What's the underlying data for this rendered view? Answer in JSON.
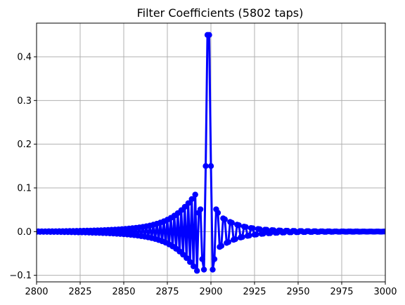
{
  "chart_data": {
    "type": "line",
    "title": "Filter Coefficients (5802 taps)",
    "xlabel": "",
    "ylabel": "",
    "xlim": [
      2800,
      3000
    ],
    "ylim": [
      -0.115,
      0.477
    ],
    "xticks": [
      2800,
      2825,
      2850,
      2875,
      2900,
      2925,
      2950,
      2975,
      3000
    ],
    "xtick_labels": [
      "2800",
      "2825",
      "2850",
      "2875",
      "2900",
      "2925",
      "2950",
      "2975",
      "3000"
    ],
    "yticks": [
      -0.1,
      0.0,
      0.1,
      0.2,
      0.3,
      0.4
    ],
    "ytick_labels": [
      "−0.1",
      "0.0",
      "0.1",
      "0.2",
      "0.3",
      "0.4"
    ],
    "grid": true,
    "marker": "circle",
    "color": "#0000ff",
    "series": [
      {
        "x": [
          2800,
          2801,
          2802,
          2803,
          2804,
          2805,
          2806,
          2807,
          2808,
          2809,
          2810,
          2811,
          2812,
          2813,
          2814,
          2815,
          2816,
          2817,
          2818,
          2819,
          2820,
          2821,
          2822,
          2823,
          2824,
          2825,
          2826,
          2827,
          2828,
          2829,
          2830,
          2831,
          2832,
          2833,
          2834,
          2835,
          2836,
          2837,
          2838,
          2839,
          2840,
          2841,
          2842,
          2843,
          2844,
          2845,
          2846,
          2847,
          2848,
          2849,
          2850,
          2851,
          2852,
          2853,
          2854,
          2855,
          2856,
          2857,
          2858,
          2859,
          2860,
          2861,
          2862,
          2863,
          2864,
          2865,
          2866,
          2867,
          2868,
          2869,
          2870,
          2871,
          2872,
          2873,
          2874,
          2875,
          2876,
          2877,
          2878,
          2879,
          2880,
          2881,
          2882,
          2883,
          2884,
          2885,
          2886,
          2887,
          2888,
          2889,
          2890,
          2891,
          2892,
          2893,
          2894,
          2895,
          2896,
          2897,
          2898,
          2899,
          2900,
          2901,
          2902,
          2903,
          2904,
          2905,
          2906,
          2907,
          2908,
          2909,
          2910,
          2911,
          2912,
          2913,
          2914,
          2915,
          2916,
          2917,
          2918,
          2919,
          2920,
          2921,
          2922,
          2923,
          2924,
          2925,
          2926,
          2927,
          2928,
          2929,
          2930,
          2931,
          2932,
          2933,
          2934,
          2935,
          2936,
          2937,
          2938,
          2939,
          2940,
          2941,
          2942,
          2943,
          2944,
          2945,
          2946,
          2947,
          2948,
          2949,
          2950,
          2951,
          2952,
          2953,
          2954,
          2955,
          2956,
          2957,
          2958,
          2959,
          2960,
          2961,
          2962,
          2963,
          2964,
          2965,
          2966,
          2967,
          2968,
          2969,
          2970,
          2971,
          2972,
          2973,
          2974,
          2975,
          2976,
          2977,
          2978,
          2979,
          2980,
          2981,
          2982,
          2983,
          2984,
          2985,
          2986,
          2987,
          2988,
          2989,
          2990,
          2991,
          2992,
          2993,
          2994,
          2995,
          2996,
          2997,
          2998,
          2999,
          3000
        ],
        "y": [
          -0.0005,
          0.0005,
          -0.0005,
          0.0006,
          -0.0006,
          0.0006,
          -0.0006,
          0.0007,
          -0.0007,
          0.0007,
          -0.0008,
          0.0008,
          -0.0008,
          0.0009,
          -0.0009,
          0.001,
          -0.0011,
          0.0011,
          -0.0012,
          0.0013,
          -0.0013,
          0.0014,
          -0.0015,
          0.0016,
          -0.0017,
          0.0017,
          -0.0018,
          0.0019,
          -0.002,
          0.0021,
          -0.0022,
          0.0023,
          -0.0025,
          0.0026,
          -0.0027,
          0.0028,
          -0.003,
          0.0031,
          -0.0033,
          0.0034,
          -0.0036,
          0.0038,
          -0.004,
          0.0042,
          -0.0044,
          0.0046,
          -0.0049,
          0.0051,
          -0.0054,
          0.0057,
          -0.006,
          0.0063,
          -0.0066,
          0.007,
          -0.0074,
          0.0078,
          -0.0082,
          0.0087,
          -0.0092,
          0.0097,
          -0.0103,
          0.0109,
          -0.0116,
          0.0123,
          -0.0131,
          0.0139,
          -0.0148,
          0.0158,
          -0.0168,
          0.018,
          -0.0192,
          0.0206,
          -0.022,
          0.0236,
          -0.0253,
          0.0272,
          -0.0292,
          0.0314,
          -0.0338,
          0.0364,
          -0.0392,
          0.0422,
          -0.0454,
          0.0489,
          -0.0526,
          0.0565,
          -0.0606,
          0.065,
          -0.0696,
          0.0744,
          -0.0794,
          0.0846,
          -0.0897,
          0.043,
          0.051,
          -0.063,
          -0.087,
          0.15,
          0.45,
          0.45,
          0.15,
          -0.087,
          -0.063,
          0.051,
          0.043,
          -0.0351,
          -0.0327,
          0.0303,
          0.028,
          -0.0259,
          -0.0239,
          0.022,
          0.0203,
          -0.0187,
          -0.0172,
          0.0159,
          0.0146,
          -0.0135,
          -0.0124,
          0.0114,
          0.0105,
          -0.0097,
          -0.0089,
          0.0082,
          0.0076,
          -0.007,
          -0.0065,
          0.006,
          0.0055,
          -0.0051,
          -0.0047,
          0.0044,
          0.0041,
          -0.0038,
          -0.0035,
          0.0033,
          0.003,
          -0.0028,
          -0.0026,
          0.0025,
          0.0023,
          -0.0021,
          -0.002,
          0.0019,
          0.0018,
          -0.0016,
          -0.0015,
          0.0015,
          0.0014,
          -0.0013,
          -0.0012,
          0.0011,
          0.0011,
          -0.001,
          -0.001,
          0.0009,
          0.0009,
          -0.0008,
          -0.0008,
          0.0007,
          0.0007,
          -0.0007,
          -0.0006,
          0.0006,
          0.0006,
          -0.0005,
          -0.0005,
          0.0005,
          0.0005,
          -0.0005,
          -0.0004,
          0.0004,
          0.0004,
          -0.0004,
          -0.0004,
          0.0004,
          0.0003,
          -0.0003,
          -0.0003,
          0.0003,
          0.0003,
          -0.0003,
          -0.0003,
          0.0003,
          0.0003,
          -0.0003,
          -0.0002,
          0.0002,
          0.0002,
          -0.0002,
          -0.0002,
          0.0002,
          0.0002,
          -0.0002,
          -0.0002,
          0.0002,
          0.0002,
          -0.0002,
          -0.0002,
          0.0002,
          0.0002
        ]
      }
    ]
  }
}
